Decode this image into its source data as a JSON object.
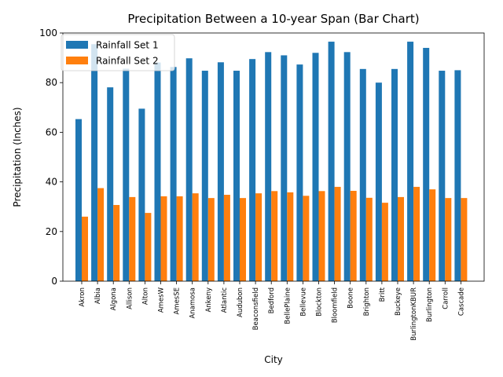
{
  "chart_data": {
    "type": "bar",
    "title": "Precipitation Between a 10-year Span (Bar Chart)",
    "xlabel": "City",
    "ylabel": "Precipitation (Inches)",
    "ylim": [
      0,
      100
    ],
    "yticks": [
      0,
      20,
      40,
      60,
      80,
      100
    ],
    "grid": false,
    "legend_position": "top-left",
    "categories": [
      "Akron",
      "Albia",
      "Algona",
      "Allison",
      "Alton",
      "AmesW",
      "AmesSE",
      "Anamosa",
      "Ankeny",
      "Atlantic",
      "Audubon",
      "Beaconsfield",
      "Bedford",
      "BellePlaine",
      "Bellevue",
      "Blockton",
      "Bloomfield",
      "Boone",
      "Brighton",
      "Britt",
      "Buckeye",
      "BurlingtonKBUR",
      "Burlington",
      "Carroll",
      "Cascade"
    ],
    "series": [
      {
        "name": "Rainfall Set 1",
        "color": "#1f77b4",
        "values": [
          65.3,
          95.5,
          78.1,
          85.6,
          69.5,
          88.1,
          86.3,
          89.8,
          84.8,
          88.2,
          84.8,
          89.5,
          92.3,
          91.0,
          87.3,
          92.0,
          96.5,
          92.3,
          85.5,
          80.0,
          85.5,
          96.5,
          94.0,
          84.8,
          85.0
        ]
      },
      {
        "name": "Rainfall Set 2",
        "color": "#ff7f0e",
        "values": [
          26.0,
          37.5,
          30.7,
          33.9,
          27.5,
          34.2,
          34.2,
          35.4,
          33.5,
          34.8,
          33.5,
          35.4,
          36.3,
          35.8,
          34.4,
          36.3,
          38.0,
          36.4,
          33.6,
          31.6,
          33.9,
          38.0,
          37.0,
          33.5,
          33.5
        ]
      }
    ]
  }
}
